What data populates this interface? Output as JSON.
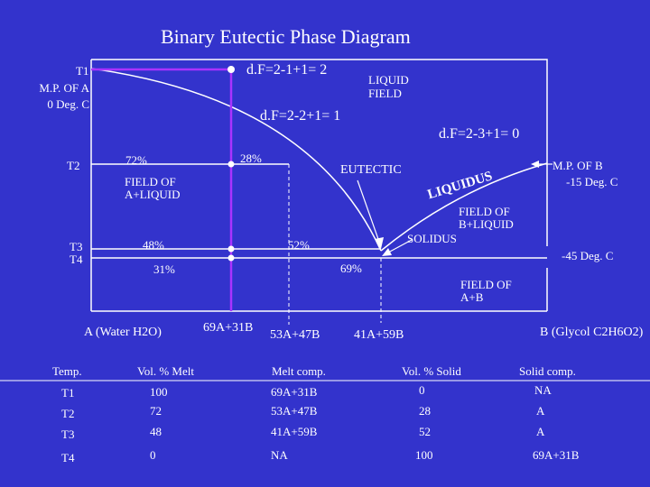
{
  "title": "Binary Eutectic Phase Diagram",
  "colors": {
    "background": "#3333cc",
    "lines": "#ffffff",
    "tie_line": "#aa33ff"
  },
  "labels": {
    "t1": "T1",
    "mp_a_line1": "M.P. OF A",
    "mp_a_line2": "0 Deg. C",
    "t2": "T2",
    "t3": "T3",
    "t4": "T4",
    "dof_t1": "d.F=2-1+1= 2",
    "liquid_field_line1": "LIQUID",
    "liquid_field_line2": "FIELD",
    "dof_t2": "d.F=2-2+1= 1",
    "dof_eutectic": "d.F=2-3+1= 0",
    "eutectic": "EUTECTIC",
    "liquidus": "LIQUIDUS",
    "mp_b_line1": "M.P. OF B",
    "mp_b_line2": "-15 Deg. C",
    "field_a_liquid_line1": "FIELD OF",
    "field_a_liquid_line2": "A+LIQUID",
    "field_b_liquid_line1": "FIELD OF",
    "field_b_liquid_line2": "B+LIQUID",
    "solidus": "SOLIDUS",
    "neg45": "-45 Deg. C",
    "field_ab_line1": "FIELD OF",
    "field_ab_line2": "A+B",
    "pct_72": "72%",
    "pct_28": "28%",
    "pct_48": "48%",
    "pct_52": "52%",
    "pct_31": "31%",
    "pct_69": "69%",
    "axis_a": "A (Water H2O)",
    "axis_b": "B (Glycol C2H6O2)",
    "comp_69a31b": "69A+31B",
    "comp_53a47b": "53A+47B",
    "comp_41a59b": "41A+59B"
  },
  "table": {
    "headers": [
      "Temp.",
      "Vol. % Melt",
      "Melt comp.",
      "Vol. % Solid",
      "Solid comp."
    ],
    "rows": [
      [
        "T1",
        "100",
        "69A+31B",
        "0",
        "NA"
      ],
      [
        "T2",
        "72",
        "53A+47B",
        "28",
        "A"
      ],
      [
        "T3",
        "48",
        "41A+59B",
        "52",
        "A"
      ],
      [
        "T4",
        "0",
        "NA",
        "100",
        "69A+31B"
      ]
    ]
  }
}
